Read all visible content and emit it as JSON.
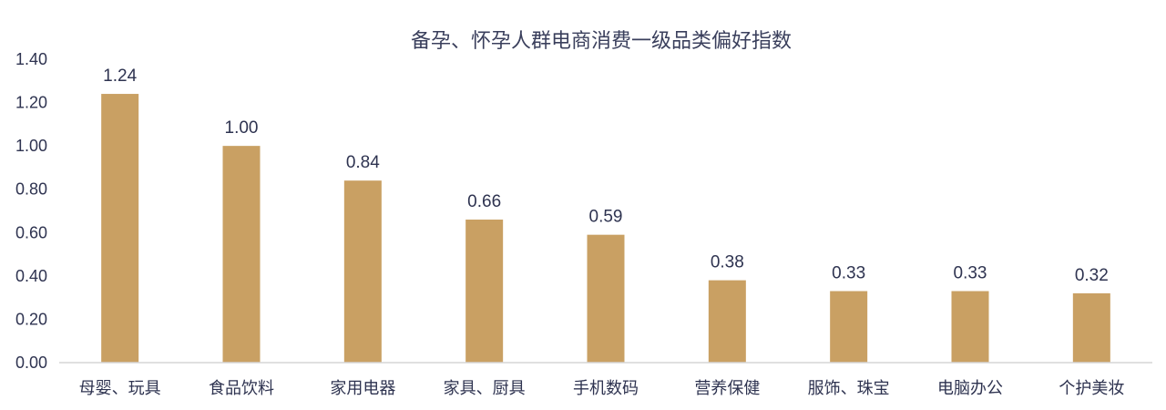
{
  "chart_data": {
    "type": "bar",
    "title": "备孕、怀孕人群电商消费一级品类偏好指数",
    "xlabel": "",
    "ylabel": "",
    "categories": [
      "母婴、玩具",
      "食品饮料",
      "家用电器",
      "家具、厨具",
      "手机数码",
      "营养保健",
      "服饰、珠宝",
      "电脑办公",
      "个护美妆"
    ],
    "values": [
      1.24,
      1.0,
      0.84,
      0.66,
      0.59,
      0.38,
      0.33,
      0.33,
      0.32
    ],
    "value_labels": [
      "1.24",
      "1.00",
      "0.84",
      "0.66",
      "0.59",
      "0.38",
      "0.33",
      "0.33",
      "0.32"
    ],
    "ylim": [
      0,
      1.4
    ],
    "yticks": [
      "0.00",
      "0.20",
      "0.40",
      "0.60",
      "0.80",
      "1.00",
      "1.20",
      "1.40"
    ],
    "grid": false,
    "legend": "none",
    "bar_color": "#C9A063"
  }
}
